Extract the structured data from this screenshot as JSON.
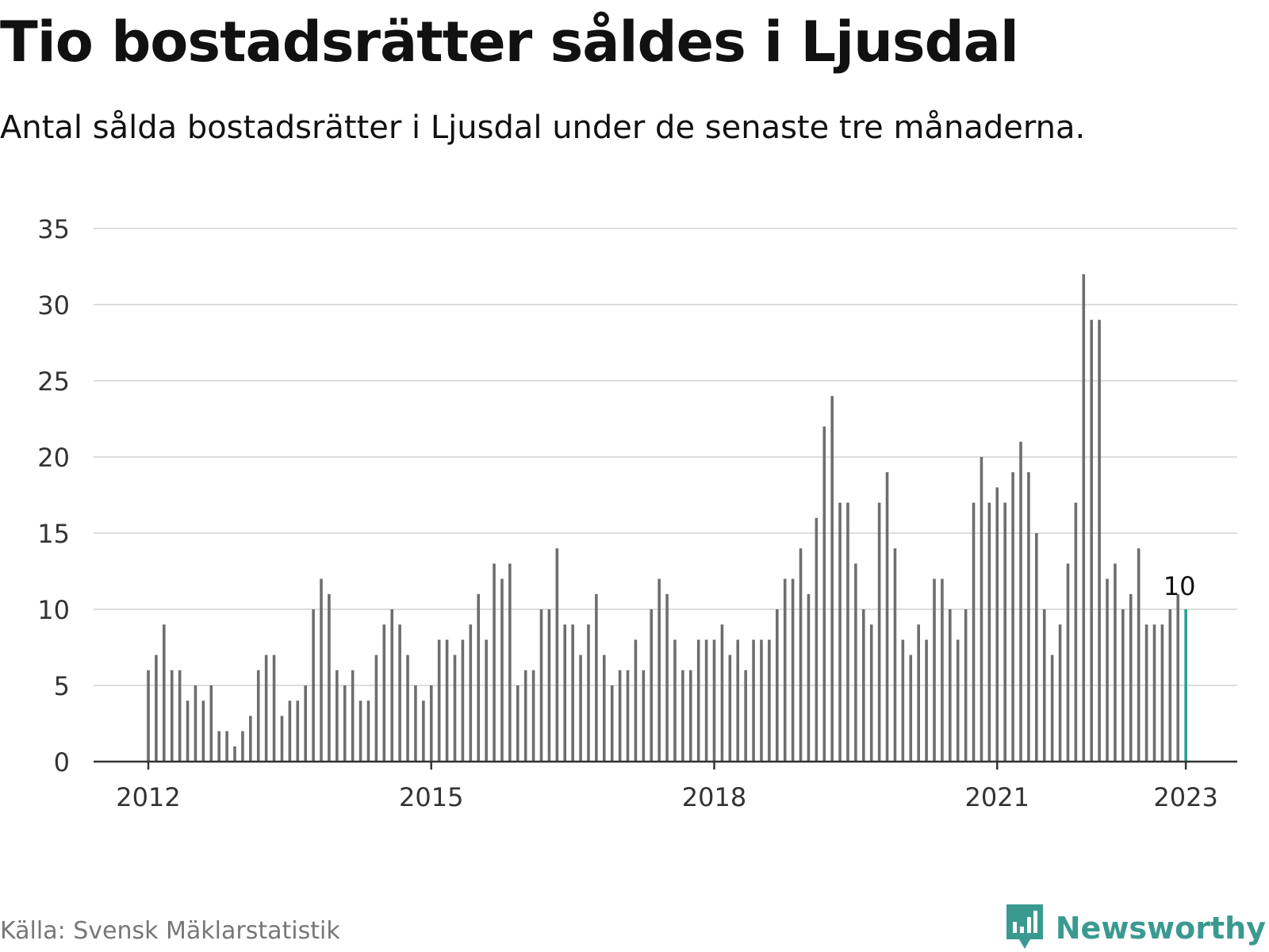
{
  "title": "Tio bostadsrätter såldes i Ljusdal",
  "subtitle": "Antal sålda bostadsrätter i Ljusdal under de senaste tre månaderna.",
  "source": "Källa: Svensk Mäklarstatistik",
  "brand": {
    "name": "Newsworthy",
    "icon": "newsworthy-logo-icon",
    "color": "#3a9a90"
  },
  "colors": {
    "bar": "#6e6e6e",
    "highlight": "#2aa198",
    "grid": "#dddddd",
    "axis": "#333333",
    "text": "#333333"
  },
  "chart_data": {
    "type": "bar",
    "x_start": "2012-01",
    "x_interval": "month",
    "values": [
      6,
      7,
      9,
      6,
      6,
      4,
      5,
      4,
      5,
      2,
      2,
      1,
      2,
      3,
      6,
      7,
      7,
      3,
      4,
      4,
      5,
      10,
      12,
      11,
      6,
      5,
      6,
      4,
      4,
      7,
      9,
      10,
      9,
      7,
      5,
      4,
      5,
      8,
      8,
      7,
      8,
      9,
      11,
      8,
      13,
      12,
      13,
      5,
      6,
      6,
      10,
      10,
      14,
      9,
      9,
      7,
      9,
      11,
      7,
      5,
      6,
      6,
      8,
      6,
      10,
      12,
      11,
      8,
      6,
      6,
      8,
      8,
      8,
      9,
      7,
      8,
      6,
      8,
      8,
      8,
      10,
      12,
      12,
      14,
      11,
      16,
      22,
      24,
      17,
      17,
      13,
      10,
      9,
      17,
      19,
      14,
      8,
      7,
      9,
      8,
      12,
      12,
      10,
      8,
      10,
      17,
      20,
      17,
      18,
      17,
      19,
      21,
      19,
      15,
      10,
      7,
      9,
      13,
      17,
      32,
      29,
      29,
      12,
      13,
      10,
      11,
      14,
      9,
      9,
      9,
      10,
      11,
      10
    ],
    "highlight_last": true,
    "highlight_label": "10",
    "ylim": [
      0,
      35
    ],
    "yticks": [
      0,
      5,
      10,
      15,
      20,
      25,
      30,
      35
    ],
    "xticks": [
      {
        "label": "2012",
        "index": 0
      },
      {
        "label": "2015",
        "index": 36
      },
      {
        "label": "2018",
        "index": 72
      },
      {
        "label": "2021",
        "index": 108
      },
      {
        "label": "2023",
        "index": 132
      }
    ],
    "grid": true,
    "legend": "none"
  }
}
